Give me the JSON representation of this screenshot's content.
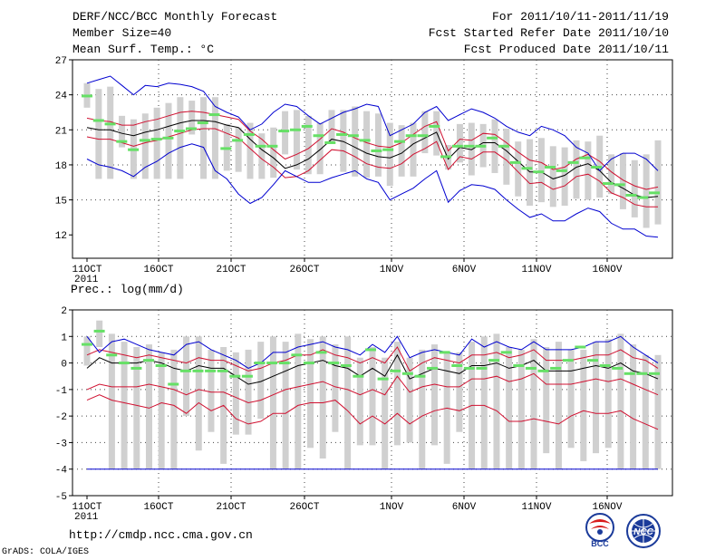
{
  "header": {
    "title": "DERF/NCC/BCC Monthly Forecast",
    "member": "Member Size=40",
    "variable": "Mean Surf. Temp.: °C",
    "period": "For 2011/10/11-2011/11/19",
    "started": "Fcst Started Refer Date 2011/10/10",
    "produced": "Fcst Produced Date 2011/10/11"
  },
  "footer": {
    "url": "http://cmdp.ncc.cma.gov.cn",
    "credit": "GrADS: COLA/IGES",
    "logo_bcc": "BCC",
    "logo_ncc": "NCC"
  },
  "colors": {
    "box": "#d0d0d0",
    "median": "#66e066",
    "mean": "#000000",
    "sd": "#d01030",
    "range": "#0000d0",
    "grid": "#444444"
  },
  "chart_data": [
    {
      "type": "box-line",
      "title": "Mean Surf. Temp.: °C",
      "x_tick_labels": [
        "11OCT",
        "16OCT",
        "21OCT",
        "26OCT",
        "1NOV",
        "6NOV",
        "11NOV",
        "16NOV"
      ],
      "x_start_label": "2011",
      "ylim": [
        10,
        27
      ],
      "y_ticks": [
        12,
        15,
        18,
        21,
        24,
        27
      ],
      "days": 40,
      "series": [
        {
          "name": "mean",
          "values": [
            21.2,
            21.0,
            21.0,
            20.7,
            20.5,
            20.8,
            21.0,
            21.3,
            21.6,
            21.8,
            21.8,
            21.7,
            21.4,
            21.2,
            20.2,
            19.3,
            18.6,
            17.7,
            18.0,
            18.5,
            19.3,
            20.2,
            20.0,
            19.5,
            19.0,
            18.7,
            18.6,
            19.0,
            19.8,
            20.3,
            20.8,
            18.5,
            19.5,
            19.3,
            19.9,
            19.9,
            19.2,
            18.3,
            17.4,
            17.4,
            16.8,
            17.1,
            17.8,
            18.1,
            17.5,
            16.5,
            16.0,
            15.4,
            15.2,
            15.3
          ]
        },
        {
          "name": "mean+sd",
          "values": [
            22.0,
            21.8,
            21.7,
            21.4,
            21.4,
            21.7,
            21.9,
            22.2,
            22.5,
            22.6,
            22.5,
            22.3,
            22.1,
            21.9,
            20.9,
            20.2,
            19.3,
            18.5,
            18.9,
            19.4,
            20.2,
            21.1,
            20.8,
            20.3,
            19.9,
            19.6,
            19.5,
            19.9,
            20.6,
            21.3,
            21.7,
            19.2,
            20.2,
            20.1,
            20.7,
            20.6,
            19.9,
            19.1,
            18.4,
            18.2,
            17.6,
            17.8,
            18.5,
            18.9,
            18.3,
            17.4,
            16.7,
            16.2,
            15.9,
            16.1
          ]
        },
        {
          "name": "mean-sd",
          "values": [
            20.4,
            20.2,
            20.2,
            19.9,
            19.6,
            19.9,
            20.1,
            20.4,
            20.7,
            21.0,
            21.1,
            21.1,
            20.7,
            20.3,
            19.4,
            18.5,
            17.8,
            16.9,
            17.0,
            17.5,
            18.4,
            19.3,
            19.2,
            18.7,
            18.1,
            17.8,
            17.7,
            18.1,
            18.9,
            19.4,
            20.0,
            17.6,
            18.7,
            18.5,
            19.1,
            19.1,
            18.4,
            17.4,
            16.4,
            16.5,
            15.9,
            16.2,
            17.0,
            17.2,
            16.6,
            15.6,
            15.2,
            14.6,
            14.4,
            14.4
          ]
        },
        {
          "name": "max",
          "values": [
            25.0,
            25.3,
            25.6,
            24.8,
            24.0,
            24.8,
            24.7,
            25.0,
            24.9,
            24.7,
            24.3,
            23.0,
            22.5,
            22.1,
            21.0,
            21.5,
            22.5,
            23.2,
            23.0,
            22.2,
            21.5,
            22.0,
            22.5,
            22.8,
            23.2,
            23.0,
            20.5,
            21.0,
            21.5,
            22.5,
            23.0,
            21.8,
            22.3,
            22.8,
            22.5,
            22.0,
            21.3,
            20.8,
            20.5,
            21.3,
            21.0,
            20.5,
            19.5,
            19.0,
            17.5,
            18.5,
            19.0,
            19.0,
            18.5,
            17.5
          ]
        },
        {
          "name": "min",
          "values": [
            18.5,
            18.0,
            17.8,
            17.5,
            17.0,
            17.8,
            18.3,
            19.0,
            19.5,
            19.8,
            19.5,
            17.5,
            16.8,
            15.5,
            14.7,
            15.2,
            16.3,
            17.5,
            17.0,
            16.5,
            16.5,
            16.9,
            17.2,
            17.5,
            16.8,
            16.5,
            15.0,
            15.5,
            16.0,
            16.8,
            17.5,
            14.8,
            15.8,
            16.3,
            16.2,
            15.9,
            15.0,
            14.2,
            13.5,
            13.8,
            13.2,
            13.2,
            13.8,
            14.3,
            14.0,
            13.0,
            12.5,
            12.5,
            11.9,
            11.8
          ]
        }
      ],
      "box_low": [
        22.9,
        16.8,
        16.8,
        19.5,
        16.8,
        16.8,
        16.8,
        16.8,
        16.8,
        20.6,
        16.8,
        16.8,
        17.5,
        17.4,
        16.8,
        16.8,
        16.9,
        18.9,
        17.6,
        17.2,
        17.2,
        19.8,
        17.4,
        17.0,
        16.9,
        17.0,
        16.2,
        17.0,
        17.0,
        19.0,
        18.8,
        17.6,
        18.2,
        17.1,
        17.8,
        17.3,
        16.3,
        15.3,
        14.5,
        14.8,
        14.4,
        14.5,
        15.1,
        15.0,
        15.2,
        15.5,
        14.2,
        13.5,
        12.6,
        12.9
      ],
      "box_high": [
        25.0,
        24.5,
        24.7,
        22.2,
        21.9,
        22.4,
        22.9,
        23.3,
        23.8,
        23.5,
        23.8,
        23.8,
        21.5,
        21.2,
        21.6,
        20.7,
        21.2,
        22.6,
        22.7,
        22.2,
        21.6,
        22.7,
        22.7,
        23.0,
        22.6,
        22.4,
        21.6,
        21.4,
        21.6,
        22.6,
        22.6,
        19.7,
        21.5,
        21.6,
        21.5,
        21.9,
        21.1,
        20.0,
        20.2,
        20.3,
        19.6,
        19.5,
        20.1,
        20.0,
        20.5,
        18.9,
        19.0,
        18.4,
        18.9,
        20.1
      ],
      "median": [
        23.9,
        21.8,
        21.5,
        20.0,
        19.3,
        20.1,
        20.2,
        20.3,
        20.9,
        21.1,
        21.6,
        22.3,
        19.4,
        20.1,
        20.6,
        19.6,
        19.6,
        20.9,
        21.0,
        21.3,
        20.5,
        19.9,
        20.6,
        20.5,
        20.1,
        19.2,
        19.3,
        20.0,
        20.5,
        20.5,
        21.3,
        18.7,
        19.6,
        19.6,
        19.6,
        20.3,
        19.6,
        18.2,
        17.7,
        17.4,
        17.8,
        17.5,
        18.2,
        18.6,
        17.8,
        16.4,
        16.3,
        15.4,
        15.2,
        15.6
      ],
      "median_days": [
        0,
        1,
        3,
        4,
        6,
        7,
        9,
        10,
        12,
        13,
        15,
        16,
        18,
        19,
        21,
        22,
        24,
        25,
        27,
        28,
        30,
        31,
        33,
        34,
        36,
        37,
        39,
        40,
        42,
        43,
        45,
        46,
        48,
        49,
        51,
        52,
        54,
        55,
        57,
        58,
        60,
        61,
        63,
        64,
        66,
        67,
        69,
        70,
        72,
        73
      ]
    },
    {
      "type": "box-line",
      "title": "Prec.: log(mm/d)",
      "x_tick_labels": [
        "11OCT",
        "16OCT",
        "21OCT",
        "26OCT",
        "1NOV",
        "6NOV",
        "11NOV",
        "16NOV"
      ],
      "x_start_label": "2011",
      "ylim": [
        -5,
        2
      ],
      "y_ticks": [
        -5,
        -4,
        -3,
        -2,
        -1,
        0,
        1,
        2
      ],
      "days": 40,
      "series": [
        {
          "name": "mean",
          "values": [
            -0.2,
            0.2,
            0.0,
            0.0,
            0.0,
            0.1,
            0.0,
            -0.2,
            -0.3,
            -0.1,
            -0.2,
            -0.2,
            -0.5,
            -0.8,
            -0.7,
            -0.5,
            -0.3,
            -0.1,
            0.0,
            0.1,
            -0.1,
            -0.2,
            -0.5,
            -0.2,
            -0.5,
            0.3,
            -0.6,
            -0.4,
            -0.2,
            -0.3,
            -0.4,
            -0.1,
            -0.1,
            0.0,
            -0.2,
            -0.1,
            0.1,
            -0.3,
            -0.3,
            -0.3,
            -0.2,
            -0.1,
            -0.2,
            0.0,
            -0.3,
            -0.4,
            -0.6
          ]
        },
        {
          "name": "mean+sd",
          "values": [
            0.3,
            0.5,
            0.4,
            0.3,
            0.2,
            0.3,
            0.2,
            0.1,
            0.0,
            0.2,
            0.1,
            0.1,
            -0.1,
            -0.3,
            -0.2,
            0.0,
            0.1,
            0.3,
            0.3,
            0.5,
            0.3,
            0.2,
            0.0,
            0.2,
            0.0,
            0.6,
            -0.3,
            0.0,
            0.2,
            0.1,
            0.0,
            0.3,
            0.3,
            0.4,
            0.2,
            0.3,
            0.5,
            0.1,
            0.1,
            0.1,
            0.2,
            0.3,
            0.3,
            0.5,
            0.2,
            0.1,
            -0.2
          ]
        },
        {
          "name": "mean-sd",
          "values": [
            -1.0,
            -0.8,
            -0.9,
            -0.9,
            -0.9,
            -0.8,
            -0.9,
            -1.0,
            -1.2,
            -1.0,
            -1.1,
            -1.1,
            -1.3,
            -1.5,
            -1.4,
            -1.2,
            -1.0,
            -0.9,
            -0.8,
            -0.7,
            -0.9,
            -1.0,
            -1.2,
            -1.0,
            -1.2,
            -0.5,
            -1.1,
            -0.9,
            -0.8,
            -0.9,
            -0.9,
            -0.6,
            -0.6,
            -0.5,
            -0.7,
            -0.6,
            -0.4,
            -0.8,
            -0.8,
            -0.8,
            -0.7,
            -0.6,
            -0.7,
            -0.6,
            -0.8,
            -1.0,
            -1.2
          ]
        },
        {
          "name": "low",
          "values": [
            -1.4,
            -1.2,
            -1.4,
            -1.5,
            -1.6,
            -1.7,
            -1.5,
            -1.6,
            -1.9,
            -1.5,
            -1.8,
            -1.6,
            -2.1,
            -2.3,
            -2.2,
            -1.9,
            -1.9,
            -1.6,
            -1.5,
            -1.5,
            -1.4,
            -1.8,
            -2.3,
            -2.0,
            -2.3,
            -1.9,
            -2.3,
            -2.0,
            -1.8,
            -1.7,
            -1.8,
            -1.6,
            -1.6,
            -1.8,
            -2.2,
            -2.2,
            -2.1,
            -2.2,
            -2.3,
            -2.0,
            -1.8,
            -1.9,
            -1.9,
            -1.8,
            -2.1,
            -2.3,
            -2.5
          ]
        },
        {
          "name": "max",
          "values": [
            1.0,
            0.4,
            0.8,
            0.9,
            0.7,
            0.5,
            0.4,
            0.3,
            0.7,
            0.8,
            0.5,
            0.3,
            0.1,
            -0.2,
            0.0,
            0.4,
            0.4,
            0.6,
            0.7,
            0.8,
            0.6,
            0.5,
            0.3,
            0.7,
            0.4,
            1.0,
            0.2,
            0.4,
            0.5,
            0.4,
            0.3,
            0.9,
            0.6,
            0.8,
            0.6,
            0.5,
            0.8,
            0.5,
            0.5,
            0.5,
            0.6,
            0.8,
            0.8,
            1.0,
            0.6,
            0.3,
            0.0
          ]
        },
        {
          "name": "floor",
          "values": [
            -4.0,
            -4.0
          ]
        }
      ],
      "box_low": [
        -0.1,
        0.6,
        -4.0,
        -4.0,
        -4.0,
        -4.0,
        -4.0,
        -4.0,
        -2.0,
        -3.3,
        -2.6,
        -3.8,
        -2.7,
        -2.7,
        -2.1,
        -4.0,
        -4.0,
        -4.0,
        -3.2,
        -3.6,
        -2.6,
        -4.0,
        -3.1,
        -3.1,
        -4.0,
        -3.1,
        -3.0,
        -4.0,
        -3.1,
        -3.8,
        -2.6,
        -4.0,
        -4.0,
        -4.0,
        -4.0,
        -4.0,
        -4.0,
        -3.4,
        -4.0,
        -3.2,
        -3.7,
        -3.4,
        -3.2,
        -4.0,
        -4.0,
        -4.0,
        -4.0
      ],
      "box_high": [
        1.0,
        1.6,
        1.1,
        0.8,
        0.6,
        0.7,
        0.4,
        0.5,
        1.0,
        1.0,
        0.5,
        0.6,
        0.4,
        0.5,
        0.8,
        1.0,
        0.8,
        1.1,
        0.9,
        1.0,
        0.7,
        1.0,
        0.2,
        0.6,
        0.2,
        0.8,
        0.2,
        0.5,
        0.7,
        0.4,
        0.4,
        0.8,
        1.0,
        1.1,
        0.6,
        0.5,
        0.9,
        0.6,
        0.8,
        0.5,
        0.5,
        0.8,
        0.9,
        1.1,
        0.7,
        0.3,
        0.3
      ],
      "median": [
        0.7,
        1.2,
        0.3,
        0.0,
        -0.2,
        0.1,
        -0.1,
        -0.8,
        -0.3,
        -0.3,
        -0.3,
        -0.3,
        -0.5,
        -0.5,
        0.0,
        0.0,
        0.0,
        0.3,
        0.0,
        0.4,
        0.0,
        -0.1,
        -0.5,
        0.5,
        -0.6,
        -0.3,
        -0.4,
        -0.5,
        -0.2,
        0.4,
        -0.1,
        -0.2,
        -0.2,
        0.1,
        0.4,
        -0.1,
        -0.2,
        -0.3,
        -0.2,
        0.1,
        0.6,
        0.1,
        -0.1,
        -0.2,
        -0.4,
        -0.4,
        -0.4
      ]
    }
  ]
}
